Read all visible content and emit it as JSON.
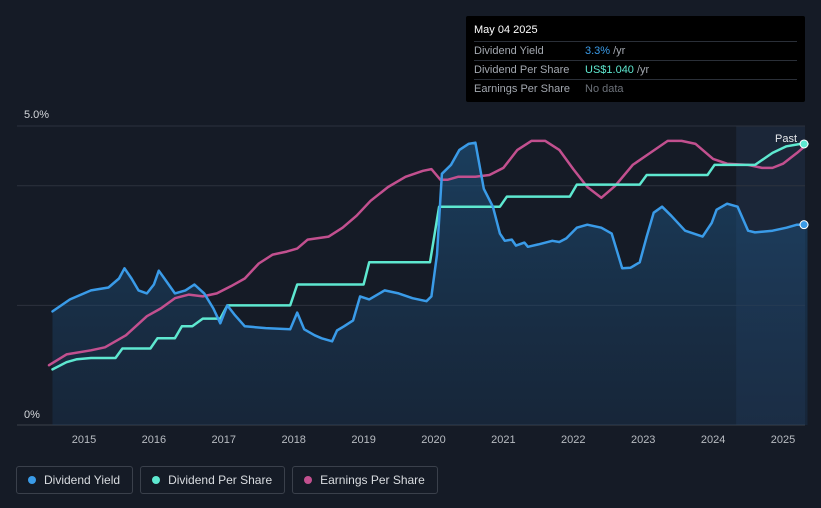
{
  "tooltip": {
    "date": "May 04 2025",
    "rows": [
      {
        "label": "Dividend Yield",
        "value": "3.3%",
        "unit": "/yr",
        "color": "#3a9be8"
      },
      {
        "label": "Dividend Per Share",
        "value": "US$1.040",
        "unit": "/yr",
        "color": "#5ee8d0"
      },
      {
        "label": "Earnings Per Share",
        "value": "No data",
        "unit": "",
        "color": "#6d727a"
      }
    ]
  },
  "past_label": "Past",
  "legend": [
    {
      "label": "Dividend Yield",
      "color": "#3a9be8"
    },
    {
      "label": "Dividend Per Share",
      "color": "#5ee8d0"
    },
    {
      "label": "Earnings Per Share",
      "color": "#c2508f"
    }
  ],
  "chart_data": {
    "type": "line",
    "y_axis_labels": [
      "5.0%",
      "0%"
    ],
    "ylim": [
      0,
      5.0
    ],
    "xlim": [
      2014.4,
      2025.35
    ],
    "x_ticks": [
      "2015",
      "2016",
      "2017",
      "2018",
      "2019",
      "2020",
      "2021",
      "2022",
      "2023",
      "2024",
      "2025"
    ],
    "forecast_start": 2024.33,
    "series": [
      {
        "name": "Dividend Yield",
        "color": "#3a9be8",
        "points": [
          [
            2014.55,
            1.9
          ],
          [
            2014.8,
            2.1
          ],
          [
            2015.1,
            2.25
          ],
          [
            2015.35,
            2.3
          ],
          [
            2015.5,
            2.45
          ],
          [
            2015.58,
            2.62
          ],
          [
            2015.68,
            2.45
          ],
          [
            2015.78,
            2.25
          ],
          [
            2015.9,
            2.2
          ],
          [
            2016.0,
            2.35
          ],
          [
            2016.07,
            2.58
          ],
          [
            2016.15,
            2.45
          ],
          [
            2016.3,
            2.2
          ],
          [
            2016.45,
            2.25
          ],
          [
            2016.58,
            2.35
          ],
          [
            2016.72,
            2.2
          ],
          [
            2016.85,
            1.95
          ],
          [
            2016.95,
            1.7
          ],
          [
            2017.05,
            2.0
          ],
          [
            2017.15,
            1.85
          ],
          [
            2017.3,
            1.65
          ],
          [
            2017.6,
            1.62
          ],
          [
            2017.95,
            1.6
          ],
          [
            2018.05,
            1.88
          ],
          [
            2018.15,
            1.6
          ],
          [
            2018.3,
            1.5
          ],
          [
            2018.4,
            1.45
          ],
          [
            2018.55,
            1.4
          ],
          [
            2018.62,
            1.58
          ],
          [
            2018.72,
            1.65
          ],
          [
            2018.85,
            1.75
          ],
          [
            2018.95,
            2.15
          ],
          [
            2019.08,
            2.1
          ],
          [
            2019.3,
            2.25
          ],
          [
            2019.5,
            2.2
          ],
          [
            2019.7,
            2.12
          ],
          [
            2019.9,
            2.07
          ],
          [
            2019.97,
            2.15
          ],
          [
            2020.05,
            2.85
          ],
          [
            2020.12,
            4.2
          ],
          [
            2020.25,
            4.35
          ],
          [
            2020.37,
            4.6
          ],
          [
            2020.5,
            4.7
          ],
          [
            2020.6,
            4.72
          ],
          [
            2020.72,
            3.95
          ],
          [
            2020.85,
            3.65
          ],
          [
            2020.95,
            3.2
          ],
          [
            2021.02,
            3.08
          ],
          [
            2021.12,
            3.1
          ],
          [
            2021.18,
            3.0
          ],
          [
            2021.3,
            3.05
          ],
          [
            2021.35,
            2.98
          ],
          [
            2021.5,
            3.02
          ],
          [
            2021.7,
            3.08
          ],
          [
            2021.8,
            3.06
          ],
          [
            2021.9,
            3.12
          ],
          [
            2022.05,
            3.3
          ],
          [
            2022.2,
            3.35
          ],
          [
            2022.4,
            3.3
          ],
          [
            2022.55,
            3.2
          ],
          [
            2022.7,
            2.62
          ],
          [
            2022.82,
            2.63
          ],
          [
            2022.95,
            2.72
          ],
          [
            2023.05,
            3.15
          ],
          [
            2023.15,
            3.55
          ],
          [
            2023.27,
            3.65
          ],
          [
            2023.4,
            3.5
          ],
          [
            2023.6,
            3.25
          ],
          [
            2023.85,
            3.15
          ],
          [
            2023.98,
            3.38
          ],
          [
            2024.05,
            3.6
          ],
          [
            2024.2,
            3.7
          ],
          [
            2024.35,
            3.65
          ],
          [
            2024.5,
            3.25
          ],
          [
            2024.6,
            3.22
          ],
          [
            2024.85,
            3.25
          ],
          [
            2025.05,
            3.3
          ],
          [
            2025.2,
            3.35
          ],
          [
            2025.35,
            3.35
          ]
        ]
      },
      {
        "name": "Dividend Per Share",
        "color": "#5ee8d0",
        "points": [
          [
            2014.55,
            0.93
          ],
          [
            2014.75,
            1.05
          ],
          [
            2014.9,
            1.1
          ],
          [
            2015.1,
            1.12
          ],
          [
            2015.45,
            1.12
          ],
          [
            2015.55,
            1.28
          ],
          [
            2015.95,
            1.28
          ],
          [
            2016.05,
            1.45
          ],
          [
            2016.3,
            1.45
          ],
          [
            2016.4,
            1.65
          ],
          [
            2016.55,
            1.65
          ],
          [
            2016.7,
            1.78
          ],
          [
            2016.95,
            1.78
          ],
          [
            2017.05,
            2.0
          ],
          [
            2017.95,
            2.0
          ],
          [
            2018.05,
            2.35
          ],
          [
            2019.0,
            2.35
          ],
          [
            2019.08,
            2.72
          ],
          [
            2019.95,
            2.72
          ],
          [
            2020.08,
            3.65
          ],
          [
            2020.95,
            3.65
          ],
          [
            2021.05,
            3.82
          ],
          [
            2021.95,
            3.82
          ],
          [
            2022.05,
            4.02
          ],
          [
            2022.95,
            4.02
          ],
          [
            2023.05,
            4.18
          ],
          [
            2023.92,
            4.18
          ],
          [
            2024.02,
            4.35
          ],
          [
            2024.6,
            4.35
          ],
          [
            2024.85,
            4.55
          ],
          [
            2025.05,
            4.66
          ],
          [
            2025.25,
            4.7
          ],
          [
            2025.35,
            4.7
          ]
        ]
      },
      {
        "name": "Earnings Per Share",
        "color": "#c2508f",
        "points": [
          [
            2014.5,
            1.0
          ],
          [
            2014.75,
            1.18
          ],
          [
            2015.1,
            1.25
          ],
          [
            2015.3,
            1.3
          ],
          [
            2015.6,
            1.5
          ],
          [
            2015.9,
            1.82
          ],
          [
            2016.1,
            1.95
          ],
          [
            2016.3,
            2.12
          ],
          [
            2016.5,
            2.18
          ],
          [
            2016.7,
            2.15
          ],
          [
            2016.9,
            2.2
          ],
          [
            2017.1,
            2.32
          ],
          [
            2017.3,
            2.45
          ],
          [
            2017.5,
            2.7
          ],
          [
            2017.7,
            2.85
          ],
          [
            2017.9,
            2.9
          ],
          [
            2018.05,
            2.95
          ],
          [
            2018.2,
            3.1
          ],
          [
            2018.5,
            3.15
          ],
          [
            2018.7,
            3.3
          ],
          [
            2018.9,
            3.5
          ],
          [
            2019.1,
            3.75
          ],
          [
            2019.35,
            3.98
          ],
          [
            2019.6,
            4.15
          ],
          [
            2019.85,
            4.25
          ],
          [
            2019.97,
            4.28
          ],
          [
            2020.1,
            4.1
          ],
          [
            2020.2,
            4.1
          ],
          [
            2020.35,
            4.15
          ],
          [
            2020.6,
            4.15
          ],
          [
            2020.8,
            4.18
          ],
          [
            2021.0,
            4.3
          ],
          [
            2021.2,
            4.6
          ],
          [
            2021.4,
            4.75
          ],
          [
            2021.6,
            4.75
          ],
          [
            2021.8,
            4.6
          ],
          [
            2022.0,
            4.28
          ],
          [
            2022.2,
            3.98
          ],
          [
            2022.4,
            3.8
          ],
          [
            2022.6,
            4.0
          ],
          [
            2022.85,
            4.35
          ],
          [
            2023.1,
            4.55
          ],
          [
            2023.35,
            4.75
          ],
          [
            2023.55,
            4.75
          ],
          [
            2023.75,
            4.7
          ],
          [
            2024.0,
            4.45
          ],
          [
            2024.2,
            4.37
          ],
          [
            2024.5,
            4.35
          ],
          [
            2024.7,
            4.3
          ],
          [
            2024.85,
            4.3
          ],
          [
            2025.0,
            4.37
          ],
          [
            2025.2,
            4.55
          ],
          [
            2025.35,
            4.7
          ]
        ]
      }
    ]
  }
}
